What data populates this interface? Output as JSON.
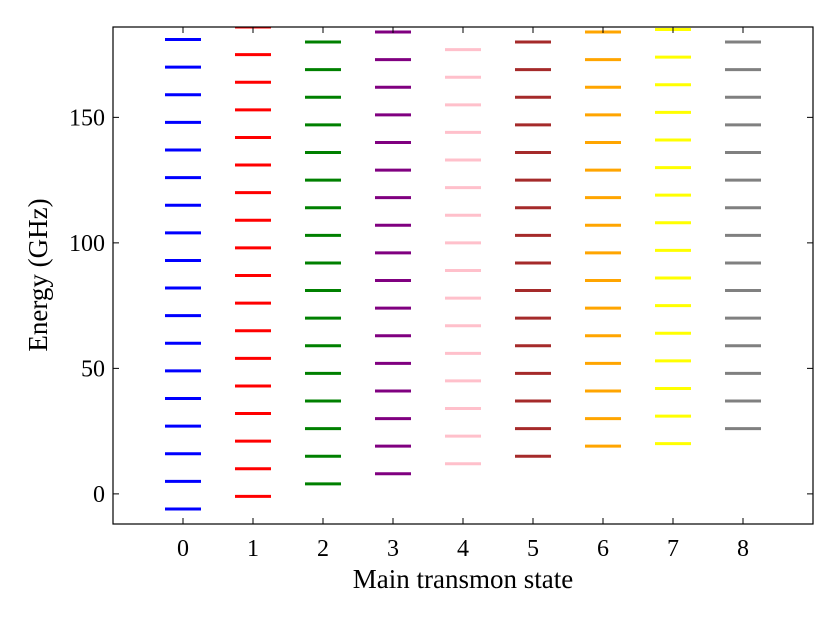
{
  "chart_data": {
    "type": "scatter",
    "title": "",
    "xlabel": "Main transmon state",
    "ylabel": "Energy (GHz)",
    "xlim": [
      -1,
      9
    ],
    "ylim": [
      -12,
      186
    ],
    "xticks": [
      0,
      1,
      2,
      3,
      4,
      5,
      6,
      7,
      8
    ],
    "yticks": [
      0,
      50,
      100,
      150
    ],
    "marker": "horizontal level segment",
    "series": [
      {
        "name": "0",
        "x": 0,
        "color": "#0000ff",
        "values": [
          -6,
          5,
          16,
          27,
          38,
          49,
          60,
          71,
          82,
          93,
          104,
          115,
          126,
          137,
          148,
          159,
          170,
          181
        ]
      },
      {
        "name": "1",
        "x": 1,
        "color": "#ff0000",
        "values": [
          -1,
          10,
          21,
          32,
          43,
          54,
          65,
          76,
          87,
          98,
          109,
          120,
          131,
          142,
          153,
          164,
          175,
          186
        ]
      },
      {
        "name": "2",
        "x": 2,
        "color": "#008000",
        "values": [
          4,
          15,
          26,
          37,
          48,
          59,
          70,
          81,
          92,
          103,
          114,
          125,
          136,
          147,
          158,
          169,
          180
        ]
      },
      {
        "name": "3",
        "x": 3,
        "color": "#800080",
        "values": [
          8,
          19,
          30,
          41,
          52,
          63,
          74,
          85,
          96,
          107,
          118,
          129,
          140,
          151,
          162,
          173,
          184
        ]
      },
      {
        "name": "4",
        "x": 4,
        "color": "#ffc0cb",
        "values": [
          12,
          23,
          34,
          45,
          56,
          67,
          78,
          89,
          100,
          111,
          122,
          133,
          144,
          155,
          166,
          177
        ]
      },
      {
        "name": "5",
        "x": 5,
        "color": "#a52a2a",
        "values": [
          15,
          26,
          37,
          48,
          59,
          70,
          81,
          92,
          103,
          114,
          125,
          136,
          147,
          158,
          169,
          180
        ]
      },
      {
        "name": "6",
        "x": 6,
        "color": "#ffa500",
        "values": [
          19,
          30,
          41,
          52,
          63,
          74,
          85,
          96,
          107,
          118,
          129,
          140,
          151,
          162,
          173,
          184
        ]
      },
      {
        "name": "7",
        "x": 7,
        "color": "#ffff00",
        "values": [
          20,
          31,
          42,
          53,
          64,
          75,
          86,
          97,
          108,
          119,
          130,
          141,
          152,
          163,
          174,
          185
        ]
      },
      {
        "name": "8",
        "x": 8,
        "color": "#808080",
        "values": [
          26,
          37,
          48,
          59,
          70,
          81,
          92,
          103,
          114,
          125,
          136,
          147,
          158,
          169,
          180
        ]
      }
    ]
  }
}
